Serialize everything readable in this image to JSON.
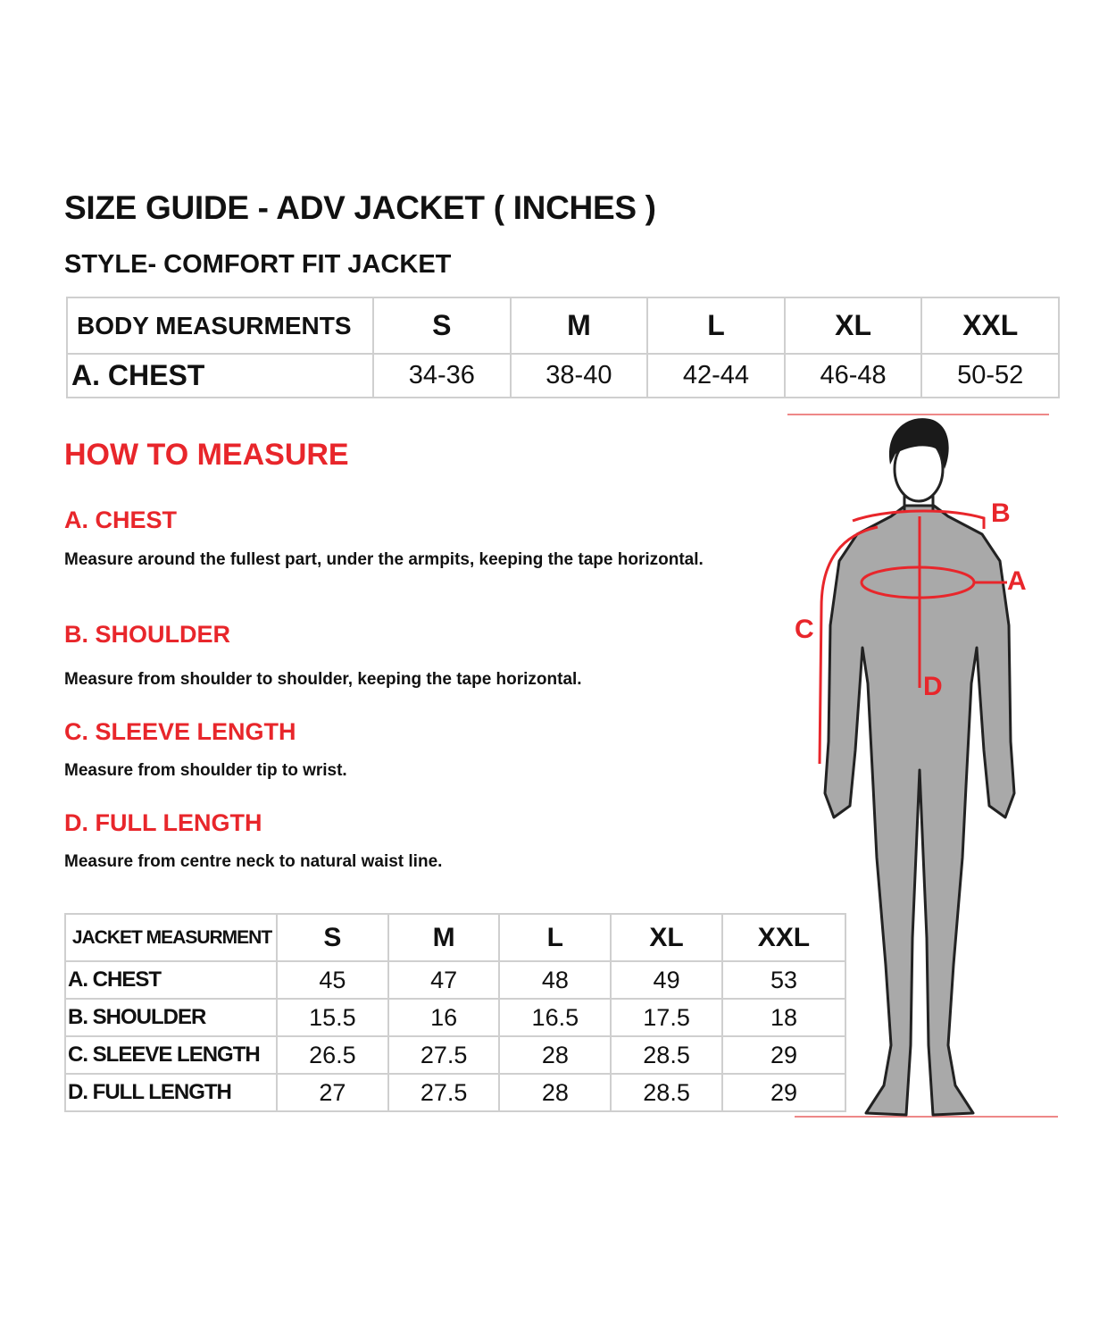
{
  "title": "SIZE GUIDE - ADV JACKET ( INCHES )",
  "subtitle": "STYLE- COMFORT FIT JACKET",
  "body_table": {
    "header": [
      "BODY MEASURMENTS",
      "S",
      "M",
      "L",
      "XL",
      "XXL"
    ],
    "rows": [
      {
        "label": "A. CHEST",
        "values": [
          "34-36",
          "38-40",
          "42-44",
          "46-48",
          "50-52"
        ]
      }
    ]
  },
  "how_to_measure": {
    "heading": "HOW TO MEASURE",
    "sections": [
      {
        "title": "A.  CHEST",
        "text": "Measure around the fullest part, under the armpits, keeping the tape horizontal."
      },
      {
        "title": "B. SHOULDER",
        "text": "Measure from shoulder to shoulder, keeping the tape horizontal."
      },
      {
        "title": "C. SLEEVE LENGTH",
        "text": "Measure from shoulder tip to wrist."
      },
      {
        "title": "D. FULL LENGTH",
        "text": "Measure from centre neck to natural waist line."
      }
    ]
  },
  "jacket_table": {
    "header": [
      "JACKET MEASURMENT",
      "S",
      "M",
      "L",
      "XL",
      "XXL"
    ],
    "rows": [
      {
        "label": "A. CHEST",
        "values": [
          "45",
          "47",
          "48",
          "49",
          "53"
        ]
      },
      {
        "label": "B. SHOULDER",
        "values": [
          "15.5",
          "16",
          "16.5",
          "17.5",
          "18"
        ]
      },
      {
        "label": "C. SLEEVE LENGTH",
        "values": [
          "26.5",
          "27.5",
          "28",
          "28.5",
          "29"
        ]
      },
      {
        "label": "D. FULL LENGTH",
        "values": [
          "27",
          "27.5",
          "28",
          "28.5",
          "29"
        ]
      }
    ]
  },
  "figure": {
    "labels": {
      "a": "A",
      "b": "B",
      "c": "C",
      "d": "D"
    }
  },
  "colors": {
    "accent": "#e8262b",
    "body": "#a9a9a9"
  }
}
